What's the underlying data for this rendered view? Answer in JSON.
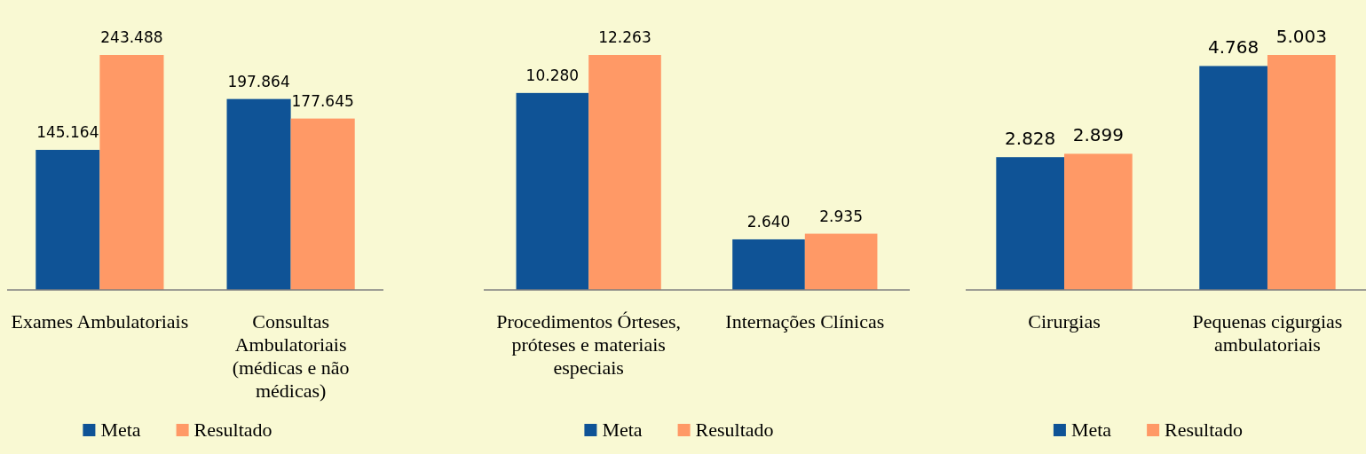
{
  "chart_data": [
    {
      "type": "bar",
      "categories": [
        "Exames Ambulatoriais",
        "Consultas Ambulatoriais (médicas e não médicas)"
      ],
      "legend": "bottom",
      "series": [
        {
          "name": "Meta",
          "color": "#0f5396",
          "values": [
            145164,
            197864
          ],
          "value_labels": [
            "145.164",
            "197.864"
          ]
        },
        {
          "name": "Resultado",
          "color": "#ff9966",
          "values": [
            243488,
            177645
          ],
          "value_labels": [
            "243.488",
            "177.645"
          ]
        }
      ]
    },
    {
      "type": "bar",
      "categories": [
        "Procedimentos Órteses, próteses e materiais especiais",
        "Internações Clínicas"
      ],
      "legend": "bottom",
      "series": [
        {
          "name": "Meta",
          "color": "#0f5396",
          "values": [
            10280,
            2640
          ],
          "value_labels": [
            "10.280",
            "2.640"
          ]
        },
        {
          "name": "Resultado",
          "color": "#ff9966",
          "values": [
            12263,
            2935
          ],
          "value_labels": [
            "12.263",
            "2.935"
          ]
        }
      ]
    },
    {
      "type": "bar",
      "categories": [
        "Cirurgias",
        "Pequenas cigurgias ambulatoriais"
      ],
      "legend": "bottom",
      "series": [
        {
          "name": "Meta",
          "color": "#0f5396",
          "values": [
            2828,
            4768
          ],
          "value_labels": [
            "2.828",
            "4.768"
          ]
        },
        {
          "name": "Resultado",
          "color": "#ff9966",
          "values": [
            2899,
            5003
          ],
          "value_labels": [
            "2.899",
            "5.003"
          ]
        }
      ]
    }
  ]
}
